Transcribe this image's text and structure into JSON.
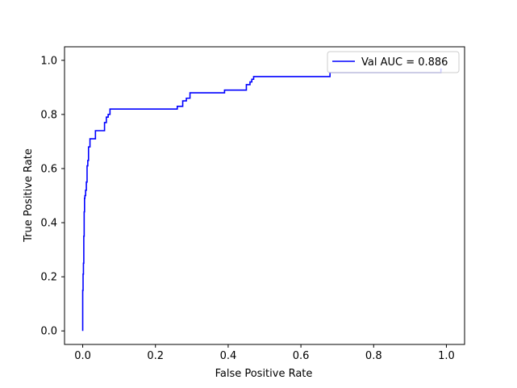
{
  "chart_data": {
    "type": "line",
    "xlabel": "False Positive Rate",
    "ylabel": "True Positive Rate",
    "xlim": [
      -0.05,
      1.05
    ],
    "ylim": [
      -0.05,
      1.05
    ],
    "xticks": [
      0.0,
      0.2,
      0.4,
      0.6,
      0.8,
      1.0
    ],
    "yticks": [
      0.0,
      0.2,
      0.4,
      0.6,
      0.8,
      1.0
    ],
    "xtick_labels": [
      "0.0",
      "0.2",
      "0.4",
      "0.6",
      "0.8",
      "1.0"
    ],
    "ytick_labels": [
      "0.0",
      "0.2",
      "0.4",
      "0.6",
      "0.8",
      "1.0"
    ],
    "grid": false,
    "legend_position": "top-right",
    "series": [
      {
        "name": "Val AUC = 0.886",
        "color": "#0000ff",
        "x": [
          0.0,
          0.0,
          0.001,
          0.001,
          0.002,
          0.002,
          0.003,
          0.003,
          0.004,
          0.004,
          0.005,
          0.005,
          0.006,
          0.006,
          0.008,
          0.008,
          0.01,
          0.01,
          0.012,
          0.012,
          0.014,
          0.014,
          0.016,
          0.016,
          0.02,
          0.02,
          0.025,
          0.025,
          0.035,
          0.035,
          0.05,
          0.05,
          0.06,
          0.06,
          0.065,
          0.065,
          0.07,
          0.07,
          0.075,
          0.075,
          0.26,
          0.26,
          0.275,
          0.275,
          0.285,
          0.285,
          0.295,
          0.295,
          0.39,
          0.39,
          0.45,
          0.45,
          0.46,
          0.46,
          0.465,
          0.465,
          0.47,
          0.47,
          0.68,
          0.68,
          0.985,
          0.985
        ],
        "y": [
          0.0,
          0.15,
          0.15,
          0.21,
          0.21,
          0.25,
          0.25,
          0.35,
          0.35,
          0.44,
          0.44,
          0.49,
          0.49,
          0.5,
          0.5,
          0.52,
          0.52,
          0.55,
          0.55,
          0.61,
          0.61,
          0.63,
          0.63,
          0.68,
          0.68,
          0.71,
          0.71,
          0.71,
          0.71,
          0.74,
          0.74,
          0.74,
          0.74,
          0.77,
          0.77,
          0.79,
          0.79,
          0.8,
          0.8,
          0.82,
          0.82,
          0.83,
          0.83,
          0.85,
          0.85,
          0.86,
          0.86,
          0.88,
          0.88,
          0.89,
          0.89,
          0.91,
          0.91,
          0.92,
          0.92,
          0.93,
          0.93,
          0.94,
          0.94,
          0.955,
          0.955,
          0.97
        ]
      }
    ]
  }
}
